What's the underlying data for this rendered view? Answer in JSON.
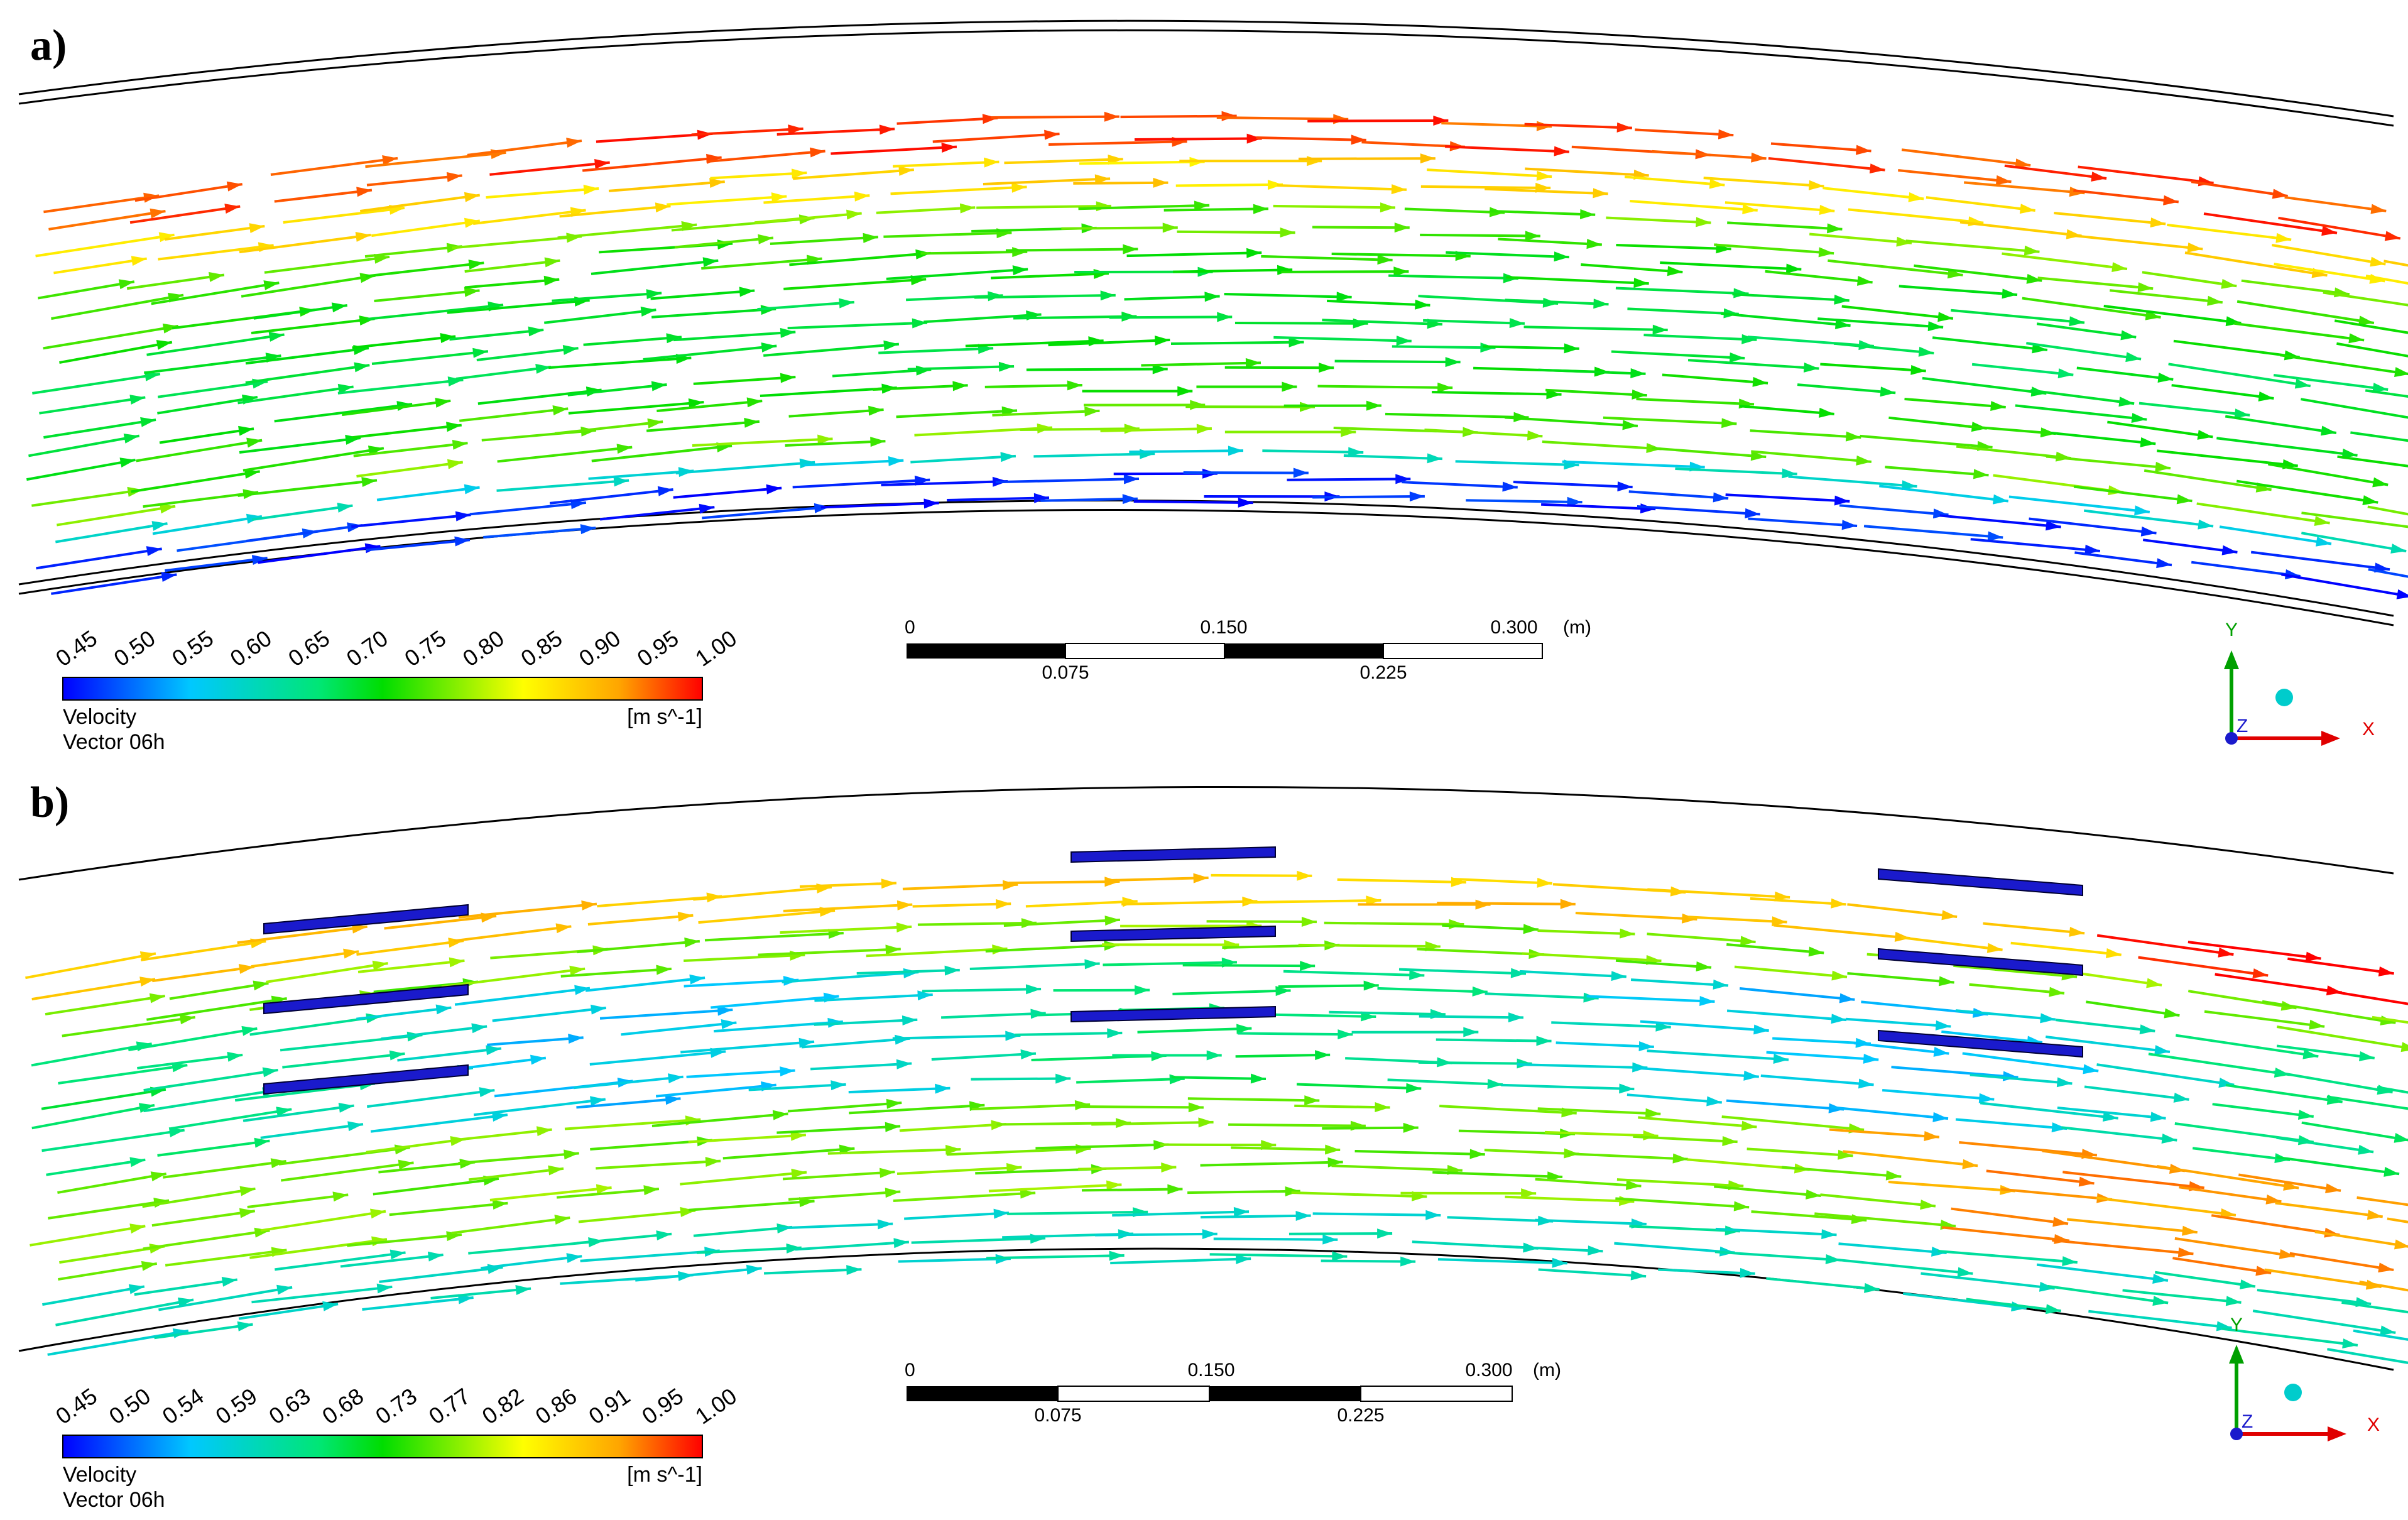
{
  "panels": [
    {
      "id": "a",
      "label": "a)",
      "legend": {
        "ticks": [
          "0.45",
          "0.50",
          "0.55",
          "0.60",
          "0.65",
          "0.70",
          "0.75",
          "0.80",
          "0.85",
          "0.90",
          "0.95",
          "1.00"
        ],
        "variable": "Velocity",
        "units": "[m s^-1]",
        "caption": "Vector 06h"
      },
      "scale_bar": {
        "top_labels": [
          "0",
          "0.150",
          "0.300"
        ],
        "bottom_labels": [
          "0.075",
          "0.225"
        ],
        "unit": "(m)"
      },
      "axes": {
        "y": "Y",
        "x": "X",
        "z": "Z"
      },
      "baffles": []
    },
    {
      "id": "b",
      "label": "b)",
      "legend": {
        "ticks": [
          "0.45",
          "0.50",
          "0.54",
          "0.59",
          "0.63",
          "0.68",
          "0.73",
          "0.77",
          "0.82",
          "0.86",
          "0.91",
          "0.95",
          "1.00"
        ],
        "variable": "Velocity",
        "units": "[m s^-1]",
        "caption": "Vector 06h"
      },
      "scale_bar": {
        "top_labels": [
          "0",
          "0.150",
          "0.300"
        ],
        "bottom_labels": [
          "0.075",
          "0.225"
        ],
        "unit": "(m)"
      },
      "axes": {
        "y": "Y",
        "x": "X",
        "z": "Z"
      },
      "baffles": [
        {
          "group": 1,
          "count": 3
        },
        {
          "group": 2,
          "count": 3
        },
        {
          "group": 3,
          "count": 3
        }
      ]
    }
  ],
  "colormap": [
    "#0000ff",
    "#00c8ff",
    "#00e676",
    "#00e000",
    "#ffff00",
    "#ffa500",
    "#ff0000"
  ],
  "baffle_color": "#1a1acc",
  "wall_color": "#000000"
}
